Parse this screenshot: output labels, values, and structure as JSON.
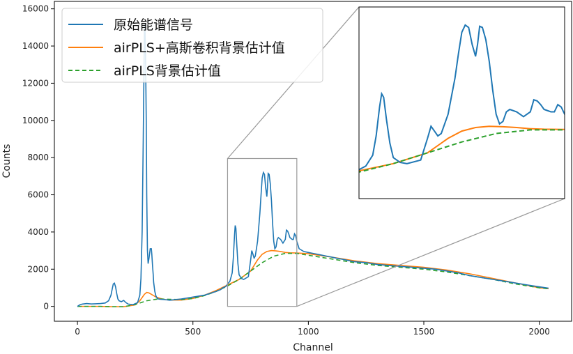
{
  "chart_data": {
    "type": "line",
    "xlabel": "Channel",
    "ylabel": "Counts",
    "xlim": [
      -100,
      2140
    ],
    "ylim": [
      -800,
      16400
    ],
    "xticks": [
      0,
      500,
      1000,
      1500,
      2000
    ],
    "yticks": [
      0,
      2000,
      4000,
      6000,
      8000,
      10000,
      12000,
      14000,
      16000
    ],
    "legend_position": "top-left",
    "series": [
      {
        "name": "原始能谱信号",
        "color": "#1f77b4",
        "style": "solid",
        "x": [
          0,
          10,
          20,
          40,
          60,
          80,
          100,
          120,
          135,
          145,
          150,
          155,
          160,
          165,
          170,
          175,
          180,
          190,
          200,
          210,
          220,
          240,
          260,
          270,
          275,
          280,
          285,
          288,
          290,
          292,
          295,
          298,
          300,
          303,
          306,
          310,
          315,
          320,
          322,
          325,
          328,
          330,
          335,
          340,
          345,
          350,
          360,
          380,
          400,
          450,
          500,
          550,
          600,
          620,
          630,
          640,
          645,
          650,
          660,
          670,
          675,
          680,
          683,
          686,
          690,
          695,
          700,
          710,
          720,
          740,
          750,
          755,
          760,
          765,
          770,
          780,
          790,
          795,
          800,
          805,
          810,
          815,
          820,
          823,
          826,
          830,
          835,
          840,
          845,
          850,
          855,
          860,
          865,
          870,
          880,
          890,
          900,
          905,
          910,
          915,
          920,
          930,
          935,
          940,
          945,
          950,
          960,
          980,
          1000,
          1020,
          1040,
          1060,
          1080,
          1100,
          1120,
          1140,
          1160,
          1180,
          1200,
          1250,
          1300,
          1350,
          1400,
          1450,
          1500,
          1550,
          1600,
          1650,
          1700,
          1750,
          1800,
          1850,
          1900,
          1950,
          2000,
          2040
        ],
        "y": [
          0,
          80,
          120,
          150,
          130,
          140,
          150,
          180,
          300,
          600,
          900,
          1200,
          1250,
          1050,
          700,
          400,
          300,
          250,
          320,
          200,
          120,
          90,
          200,
          600,
          1500,
          4000,
          9000,
          12500,
          14800,
          15200,
          13500,
          10000,
          6000,
          3000,
          2300,
          2600,
          3100,
          3100,
          2800,
          2200,
          1700,
          1300,
          800,
          550,
          450,
          400,
          380,
          360,
          330,
          400,
          500,
          600,
          800,
          900,
          1000,
          1050,
          1100,
          1200,
          1350,
          1800,
          2600,
          3800,
          4350,
          4200,
          3300,
          2300,
          1700,
          1500,
          1450,
          1600,
          2500,
          3000,
          2800,
          2600,
          2700,
          3500,
          5000,
          6000,
          6900,
          7200,
          7100,
          6400,
          5900,
          6400,
          7150,
          7100,
          6600,
          5700,
          4500,
          3500,
          3100,
          3200,
          3600,
          3700,
          3600,
          3400,
          3600,
          4100,
          4050,
          3900,
          3700,
          3600,
          3600,
          3900,
          3800,
          3500,
          3100,
          2950,
          2900,
          2850,
          2800,
          2750,
          2700,
          2650,
          2600,
          2550,
          2500,
          2450,
          2400,
          2350,
          2250,
          2200,
          2150,
          2100,
          2050,
          2000,
          1900,
          1800,
          1650,
          1550,
          1450,
          1350,
          1250,
          1150,
          1050,
          980
        ]
      },
      {
        "name": "airPLS+高斯卷积背景估计值",
        "color": "#ff7f0e",
        "style": "solid",
        "x": [
          0,
          100,
          150,
          200,
          250,
          270,
          290,
          300,
          310,
          320,
          340,
          360,
          380,
          400,
          450,
          500,
          550,
          600,
          650,
          700,
          750,
          780,
          800,
          820,
          840,
          860,
          880,
          900,
          920,
          950,
          1000,
          1100,
          1200,
          1300,
          1400,
          1500,
          1600,
          1700,
          1800,
          1900,
          2000,
          2040
        ],
        "y": [
          0,
          0,
          -20,
          -20,
          80,
          300,
          650,
          750,
          720,
          650,
          500,
          420,
          360,
          340,
          340,
          430,
          600,
          850,
          1150,
          1450,
          1900,
          2500,
          2800,
          2950,
          3000,
          2980,
          2950,
          2900,
          2880,
          2870,
          2830,
          2650,
          2450,
          2300,
          2200,
          2100,
          1950,
          1750,
          1500,
          1250,
          1000,
          950
        ]
      },
      {
        "name": "airPLS背景估计值",
        "color": "#2ca02c",
        "style": "dashed",
        "x": [
          0,
          100,
          150,
          200,
          250,
          300,
          350,
          400,
          450,
          500,
          550,
          600,
          650,
          700,
          750,
          800,
          850,
          900,
          950,
          1000,
          1100,
          1200,
          1300,
          1400,
          1500,
          1600,
          1700,
          1800,
          1900,
          2000,
          2040
        ],
        "y": [
          0,
          0,
          -20,
          -20,
          100,
          300,
          400,
          380,
          360,
          420,
          580,
          800,
          1100,
          1450,
          1900,
          2350,
          2700,
          2850,
          2850,
          2750,
          2550,
          2350,
          2200,
          2100,
          2000,
          1850,
          1650,
          1450,
          1200,
          1000,
          950
        ]
      }
    ],
    "inset": {
      "xlim": [
        650,
        950
      ],
      "ylim": [
        0,
        7950
      ]
    }
  }
}
